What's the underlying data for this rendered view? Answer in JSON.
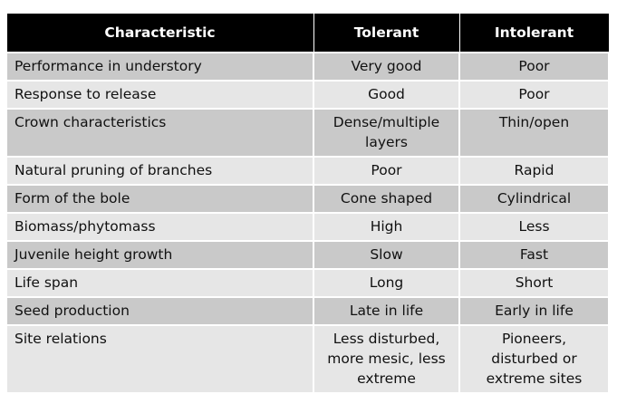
{
  "table": {
    "header": [
      "Characteristic",
      "Tolerant",
      "Intolerant"
    ],
    "rows": [
      [
        "Performance in understory",
        "Very good",
        "Poor"
      ],
      [
        "Response to release",
        "Good",
        "Poor"
      ],
      [
        "Crown characteristics",
        "Dense/multiple layers",
        "Thin/open"
      ],
      [
        "Natural pruning of branches",
        "Poor",
        "Rapid"
      ],
      [
        "Form of the bole",
        "Cone shaped",
        "Cylindrical"
      ],
      [
        "Biomass/phytomass",
        "High",
        "Less"
      ],
      [
        "Juvenile height growth",
        "Slow",
        "Fast"
      ],
      [
        "Life span",
        "Long",
        "Short"
      ],
      [
        "Seed production",
        "Late in life",
        "Early in life"
      ],
      [
        "Site relations",
        "Less disturbed, more mesic, less extreme",
        "Pioneers, disturbed or extreme sites"
      ]
    ]
  }
}
